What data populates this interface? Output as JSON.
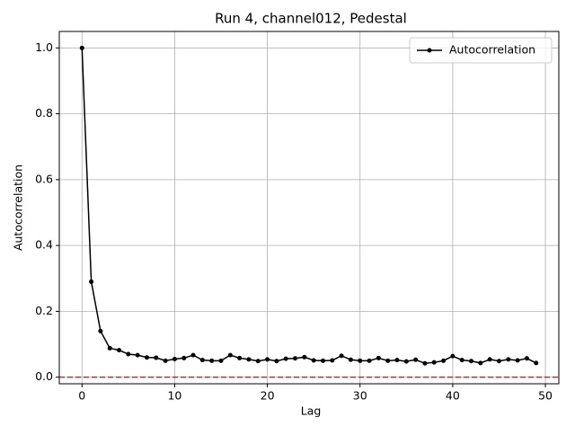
{
  "chart_data": {
    "type": "line",
    "title": "Run 4, channel012, Pedestal",
    "xlabel": "Lag",
    "ylabel": "Autocorrelation",
    "x": [
      0,
      1,
      2,
      3,
      4,
      5,
      6,
      7,
      8,
      9,
      10,
      11,
      12,
      13,
      14,
      15,
      16,
      17,
      18,
      19,
      20,
      21,
      22,
      23,
      24,
      25,
      26,
      27,
      28,
      29,
      30,
      31,
      32,
      33,
      34,
      35,
      36,
      37,
      38,
      39,
      40,
      41,
      42,
      43,
      44,
      45,
      46,
      47,
      48,
      49
    ],
    "series": [
      {
        "name": "Autocorrelation",
        "color": "#000000",
        "marker": "circle",
        "values": [
          1.0,
          0.29,
          0.14,
          0.088,
          0.082,
          0.07,
          0.067,
          0.06,
          0.059,
          0.05,
          0.055,
          0.058,
          0.067,
          0.052,
          0.05,
          0.05,
          0.067,
          0.058,
          0.054,
          0.049,
          0.054,
          0.049,
          0.056,
          0.057,
          0.061,
          0.051,
          0.05,
          0.051,
          0.065,
          0.053,
          0.05,
          0.05,
          0.058,
          0.05,
          0.052,
          0.048,
          0.053,
          0.042,
          0.045,
          0.05,
          0.064,
          0.052,
          0.049,
          0.043,
          0.054,
          0.049,
          0.054,
          0.051,
          0.057,
          0.043
        ]
      }
    ],
    "reference_line": {
      "value": 0,
      "color": "#d62728",
      "style": "dashed"
    },
    "xlim": [
      -2.45,
      51.45
    ],
    "xticks": [
      0,
      10,
      20,
      30,
      40,
      50
    ],
    "ylim": [
      -0.02,
      1.05
    ],
    "yticks": [
      {
        "value": 0,
        "label": "0.0"
      },
      0.2,
      0.4,
      0.6,
      0.8,
      {
        "value": 1,
        "label": "1.0"
      }
    ],
    "grid": true,
    "legend": "upper right"
  }
}
